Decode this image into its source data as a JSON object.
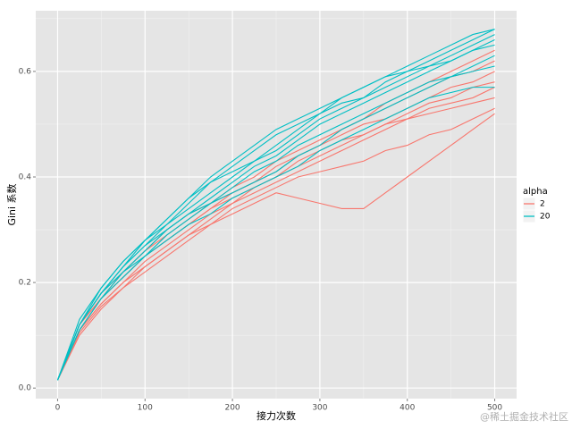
{
  "chart_data": {
    "type": "line",
    "xlabel": "接力次数",
    "ylabel": "Gini 系数",
    "watermark": "@稀土掘金技术社区",
    "x": [
      0,
      25,
      50,
      75,
      100,
      125,
      150,
      175,
      200,
      225,
      250,
      275,
      300,
      325,
      350,
      375,
      400,
      425,
      450,
      475,
      500
    ],
    "xlim": [
      -25,
      525
    ],
    "xticks": [
      0,
      100,
      200,
      300,
      400,
      500
    ],
    "ylim": [
      -0.02,
      0.715
    ],
    "yticks": [
      {
        "value": 0,
        "label": "0.0"
      },
      0.2,
      0.4,
      0.6
    ],
    "grid": true,
    "legend": {
      "title": "alpha",
      "position": "right",
      "items": [
        {
          "name": "2",
          "color": "#F8766D"
        },
        {
          "name": "20",
          "color": "#00BFC4"
        }
      ]
    },
    "series": [
      {
        "color": "#F8766D",
        "values": [
          0.015,
          0.11,
          0.16,
          0.2,
          0.23,
          0.26,
          0.29,
          0.31,
          0.33,
          0.35,
          0.37,
          0.36,
          0.35,
          0.34,
          0.34,
          0.37,
          0.4,
          0.43,
          0.46,
          0.49,
          0.52
        ]
      },
      {
        "color": "#F8766D",
        "values": [
          0.015,
          0.105,
          0.155,
          0.19,
          0.22,
          0.25,
          0.28,
          0.31,
          0.34,
          0.36,
          0.38,
          0.4,
          0.41,
          0.42,
          0.43,
          0.45,
          0.46,
          0.48,
          0.49,
          0.51,
          0.53
        ]
      },
      {
        "color": "#F8766D",
        "values": [
          0.015,
          0.11,
          0.16,
          0.2,
          0.24,
          0.27,
          0.3,
          0.33,
          0.35,
          0.37,
          0.39,
          0.41,
          0.43,
          0.45,
          0.47,
          0.49,
          0.51,
          0.53,
          0.54,
          0.55,
          0.57
        ]
      },
      {
        "color": "#F8766D",
        "values": [
          0.015,
          0.12,
          0.17,
          0.21,
          0.25,
          0.28,
          0.31,
          0.34,
          0.36,
          0.38,
          0.4,
          0.43,
          0.45,
          0.47,
          0.48,
          0.5,
          0.52,
          0.54,
          0.55,
          0.57,
          0.58
        ]
      },
      {
        "color": "#F8766D",
        "values": [
          0.015,
          0.11,
          0.17,
          0.22,
          0.26,
          0.29,
          0.32,
          0.35,
          0.37,
          0.39,
          0.41,
          0.44,
          0.46,
          0.48,
          0.5,
          0.51,
          0.53,
          0.55,
          0.57,
          0.58,
          0.6
        ]
      },
      {
        "color": "#F8766D",
        "values": [
          0.015,
          0.12,
          0.18,
          0.22,
          0.26,
          0.3,
          0.33,
          0.35,
          0.38,
          0.4,
          0.43,
          0.45,
          0.47,
          0.49,
          0.51,
          0.53,
          0.55,
          0.57,
          0.59,
          0.6,
          0.62
        ]
      },
      {
        "color": "#F8766D",
        "values": [
          0.015,
          0.12,
          0.17,
          0.21,
          0.25,
          0.28,
          0.31,
          0.34,
          0.37,
          0.39,
          0.42,
          0.44,
          0.46,
          0.49,
          0.51,
          0.54,
          0.56,
          0.58,
          0.6,
          0.62,
          0.64
        ]
      },
      {
        "color": "#F8766D",
        "values": [
          0.015,
          0.1,
          0.15,
          0.19,
          0.23,
          0.26,
          0.29,
          0.32,
          0.35,
          0.38,
          0.4,
          0.42,
          0.44,
          0.46,
          0.48,
          0.5,
          0.51,
          0.52,
          0.53,
          0.54,
          0.55
        ]
      },
      {
        "color": "#00BFC4",
        "values": [
          0.015,
          0.12,
          0.18,
          0.23,
          0.27,
          0.31,
          0.35,
          0.39,
          0.42,
          0.45,
          0.48,
          0.5,
          0.52,
          0.54,
          0.55,
          0.57,
          0.59,
          0.61,
          0.63,
          0.65,
          0.67
        ]
      },
      {
        "color": "#00BFC4",
        "values": [
          0.015,
          0.12,
          0.19,
          0.24,
          0.28,
          0.32,
          0.36,
          0.39,
          0.41,
          0.43,
          0.45,
          0.48,
          0.51,
          0.53,
          0.55,
          0.58,
          0.6,
          0.62,
          0.64,
          0.66,
          0.68
        ]
      },
      {
        "color": "#00BFC4",
        "values": [
          0.015,
          0.11,
          0.17,
          0.22,
          0.26,
          0.3,
          0.33,
          0.35,
          0.37,
          0.39,
          0.41,
          0.44,
          0.46,
          0.49,
          0.51,
          0.53,
          0.55,
          0.57,
          0.59,
          0.61,
          0.63
        ]
      },
      {
        "color": "#00BFC4",
        "values": [
          0.015,
          0.12,
          0.18,
          0.22,
          0.25,
          0.28,
          0.31,
          0.33,
          0.36,
          0.38,
          0.4,
          0.42,
          0.45,
          0.47,
          0.49,
          0.51,
          0.53,
          0.55,
          0.56,
          0.57,
          0.57
        ]
      },
      {
        "color": "#00BFC4",
        "values": [
          0.015,
          0.13,
          0.19,
          0.24,
          0.28,
          0.31,
          0.34,
          0.37,
          0.4,
          0.43,
          0.46,
          0.49,
          0.52,
          0.55,
          0.57,
          0.59,
          0.6,
          0.61,
          0.62,
          0.64,
          0.65
        ]
      },
      {
        "color": "#00BFC4",
        "values": [
          0.015,
          0.12,
          0.18,
          0.23,
          0.27,
          0.3,
          0.33,
          0.36,
          0.39,
          0.42,
          0.44,
          0.47,
          0.5,
          0.52,
          0.54,
          0.56,
          0.58,
          0.6,
          0.62,
          0.64,
          0.66
        ]
      },
      {
        "color": "#00BFC4",
        "values": [
          0.015,
          0.11,
          0.17,
          0.21,
          0.25,
          0.29,
          0.32,
          0.35,
          0.38,
          0.41,
          0.43,
          0.46,
          0.48,
          0.5,
          0.52,
          0.54,
          0.56,
          0.58,
          0.59,
          0.6,
          0.61
        ]
      },
      {
        "color": "#00BFC4",
        "values": [
          0.015,
          0.12,
          0.18,
          0.23,
          0.28,
          0.32,
          0.36,
          0.4,
          0.43,
          0.46,
          0.49,
          0.51,
          0.53,
          0.55,
          0.57,
          0.59,
          0.61,
          0.63,
          0.65,
          0.67,
          0.68
        ]
      }
    ]
  }
}
